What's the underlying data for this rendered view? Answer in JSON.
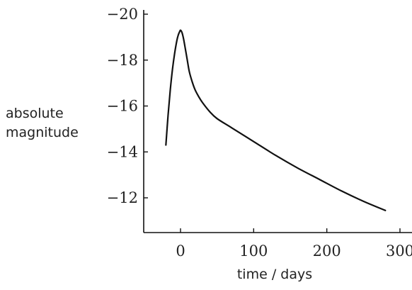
{
  "chart_data": {
    "type": "line",
    "title": "",
    "xlabel": "time / days",
    "ylabel_lines": [
      "absolute",
      "magnitude"
    ],
    "xlim": [
      -50,
      310
    ],
    "ylim": [
      -10.6,
      -20.3
    ],
    "y_inverted": true,
    "x_ticks": [
      0,
      100,
      200,
      300
    ],
    "x_tick_labels": [
      "0",
      "100",
      "200",
      "300"
    ],
    "y_ticks": [
      -20,
      -18,
      -16,
      -14,
      -12
    ],
    "y_tick_labels": [
      "−20",
      "−18",
      "−16",
      "−14",
      "−12"
    ],
    "grid": false,
    "legend": "none",
    "series": [
      {
        "color": "#111111",
        "x": [
          -20,
          -17,
          -14,
          -11,
          -8,
          -5,
          -3,
          -1,
          0,
          2,
          4,
          6,
          9,
          12,
          16,
          20,
          25,
          30,
          40,
          50,
          70,
          100,
          130,
          160,
          190,
          220,
          250,
          280
        ],
        "y": [
          -14.3,
          -15.6,
          -16.7,
          -17.6,
          -18.3,
          -18.85,
          -19.1,
          -19.25,
          -19.3,
          -19.2,
          -18.95,
          -18.6,
          -18.05,
          -17.5,
          -17.05,
          -16.7,
          -16.4,
          -16.15,
          -15.75,
          -15.45,
          -15.05,
          -14.45,
          -13.85,
          -13.3,
          -12.8,
          -12.3,
          -11.85,
          -11.45
        ]
      }
    ]
  }
}
